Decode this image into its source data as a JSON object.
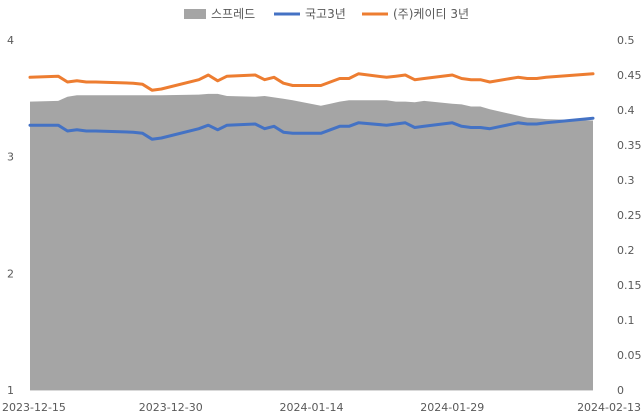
{
  "chart_data": {
    "type": "area",
    "grid": false,
    "legend_position": "top",
    "x_ticks": [
      "2023-12-15",
      "2023-12-30",
      "2024-01-14",
      "2024-01-29",
      "2024-02-13"
    ],
    "x_range": [
      "2023-12-15",
      "2024-02-13"
    ],
    "y_left": {
      "range": [
        1,
        4
      ],
      "ticks": [
        "1",
        "2",
        "3",
        "4"
      ]
    },
    "y_right": {
      "range": [
        0,
        0.5
      ],
      "ticks": [
        "0",
        "0.05",
        "0.1",
        "0.15",
        "0.2",
        "0.25",
        "0.3",
        "0.35",
        "0.4",
        "0.45",
        "0.5"
      ]
    },
    "series": [
      {
        "name": "스프레드",
        "kind": "area",
        "axis": "right",
        "color": "#a5a5a5",
        "points": [
          [
            "2023-12-15",
            0.412
          ],
          [
            "2023-12-18",
            0.413
          ],
          [
            "2023-12-19",
            0.419
          ],
          [
            "2023-12-20",
            0.421
          ],
          [
            "2023-12-21",
            0.421
          ],
          [
            "2023-12-22",
            0.421
          ],
          [
            "2023-12-26",
            0.421
          ],
          [
            "2023-12-27",
            0.421
          ],
          [
            "2023-12-28",
            0.421
          ],
          [
            "2023-12-29",
            0.421
          ],
          [
            "2024-01-02",
            0.422
          ],
          [
            "2024-01-03",
            0.423
          ],
          [
            "2024-01-04",
            0.423
          ],
          [
            "2024-01-05",
            0.42
          ],
          [
            "2024-01-08",
            0.419
          ],
          [
            "2024-01-09",
            0.42
          ],
          [
            "2024-01-10",
            0.418
          ],
          [
            "2024-01-11",
            0.416
          ],
          [
            "2024-01-12",
            0.414
          ],
          [
            "2024-01-15",
            0.406
          ],
          [
            "2024-01-16",
            0.409
          ],
          [
            "2024-01-17",
            0.412
          ],
          [
            "2024-01-18",
            0.414
          ],
          [
            "2024-01-19",
            0.414
          ],
          [
            "2024-01-22",
            0.414
          ],
          [
            "2024-01-23",
            0.412
          ],
          [
            "2024-01-24",
            0.412
          ],
          [
            "2024-01-25",
            0.411
          ],
          [
            "2024-01-26",
            0.413
          ],
          [
            "2024-01-29",
            0.409
          ],
          [
            "2024-01-30",
            0.408
          ],
          [
            "2024-01-31",
            0.405
          ],
          [
            "2024-02-01",
            0.405
          ],
          [
            "2024-02-02",
            0.401
          ],
          [
            "2024-02-05",
            0.392
          ],
          [
            "2024-02-06",
            0.389
          ],
          [
            "2024-02-07",
            0.388
          ],
          [
            "2024-02-08",
            0.387
          ],
          [
            "2024-02-13",
            0.385
          ]
        ]
      },
      {
        "name": "국고3년",
        "kind": "line",
        "axis": "left",
        "color": "#4472c4",
        "points": [
          [
            "2023-12-15",
            3.27
          ],
          [
            "2023-12-18",
            3.27
          ],
          [
            "2023-12-19",
            3.22
          ],
          [
            "2023-12-20",
            3.23
          ],
          [
            "2023-12-21",
            3.22
          ],
          [
            "2023-12-22",
            3.22
          ],
          [
            "2023-12-26",
            3.21
          ],
          [
            "2023-12-27",
            3.2
          ],
          [
            "2023-12-28",
            3.15
          ],
          [
            "2023-12-29",
            3.16
          ],
          [
            "2024-01-02",
            3.24
          ],
          [
            "2024-01-03",
            3.27
          ],
          [
            "2024-01-04",
            3.23
          ],
          [
            "2024-01-05",
            3.27
          ],
          [
            "2024-01-08",
            3.28
          ],
          [
            "2024-01-09",
            3.24
          ],
          [
            "2024-01-10",
            3.26
          ],
          [
            "2024-01-11",
            3.21
          ],
          [
            "2024-01-12",
            3.2
          ],
          [
            "2024-01-15",
            3.2
          ],
          [
            "2024-01-16",
            3.23
          ],
          [
            "2024-01-17",
            3.26
          ],
          [
            "2024-01-18",
            3.26
          ],
          [
            "2024-01-19",
            3.29
          ],
          [
            "2024-01-22",
            3.27
          ],
          [
            "2024-01-23",
            3.28
          ],
          [
            "2024-01-24",
            3.29
          ],
          [
            "2024-01-25",
            3.25
          ],
          [
            "2024-01-26",
            3.26
          ],
          [
            "2024-01-29",
            3.29
          ],
          [
            "2024-01-30",
            3.26
          ],
          [
            "2024-01-31",
            3.25
          ],
          [
            "2024-02-01",
            3.25
          ],
          [
            "2024-02-02",
            3.24
          ],
          [
            "2024-02-05",
            3.29
          ],
          [
            "2024-02-06",
            3.28
          ],
          [
            "2024-02-07",
            3.28
          ],
          [
            "2024-02-08",
            3.29
          ],
          [
            "2024-02-13",
            3.33
          ]
        ]
      },
      {
        "name": "(주)케이티 3년",
        "kind": "line",
        "axis": "left",
        "color": "#ed7d31",
        "points": [
          [
            "2023-12-15",
            3.68
          ],
          [
            "2023-12-18",
            3.69
          ],
          [
            "2023-12-19",
            3.64
          ],
          [
            "2023-12-20",
            3.65
          ],
          [
            "2023-12-21",
            3.64
          ],
          [
            "2023-12-22",
            3.64
          ],
          [
            "2023-12-26",
            3.63
          ],
          [
            "2023-12-27",
            3.62
          ],
          [
            "2023-12-28",
            3.57
          ],
          [
            "2023-12-29",
            3.58
          ],
          [
            "2024-01-02",
            3.66
          ],
          [
            "2024-01-03",
            3.7
          ],
          [
            "2024-01-04",
            3.65
          ],
          [
            "2024-01-05",
            3.69
          ],
          [
            "2024-01-08",
            3.7
          ],
          [
            "2024-01-09",
            3.66
          ],
          [
            "2024-01-10",
            3.68
          ],
          [
            "2024-01-11",
            3.63
          ],
          [
            "2024-01-12",
            3.61
          ],
          [
            "2024-01-15",
            3.61
          ],
          [
            "2024-01-16",
            3.64
          ],
          [
            "2024-01-17",
            3.67
          ],
          [
            "2024-01-18",
            3.67
          ],
          [
            "2024-01-19",
            3.71
          ],
          [
            "2024-01-22",
            3.68
          ],
          [
            "2024-01-23",
            3.69
          ],
          [
            "2024-01-24",
            3.7
          ],
          [
            "2024-01-25",
            3.66
          ],
          [
            "2024-01-26",
            3.67
          ],
          [
            "2024-01-29",
            3.7
          ],
          [
            "2024-01-30",
            3.67
          ],
          [
            "2024-01-31",
            3.66
          ],
          [
            "2024-02-01",
            3.66
          ],
          [
            "2024-02-02",
            3.64
          ],
          [
            "2024-02-05",
            3.68
          ],
          [
            "2024-02-06",
            3.67
          ],
          [
            "2024-02-07",
            3.67
          ],
          [
            "2024-02-08",
            3.68
          ],
          [
            "2024-02-13",
            3.71
          ]
        ]
      }
    ]
  }
}
